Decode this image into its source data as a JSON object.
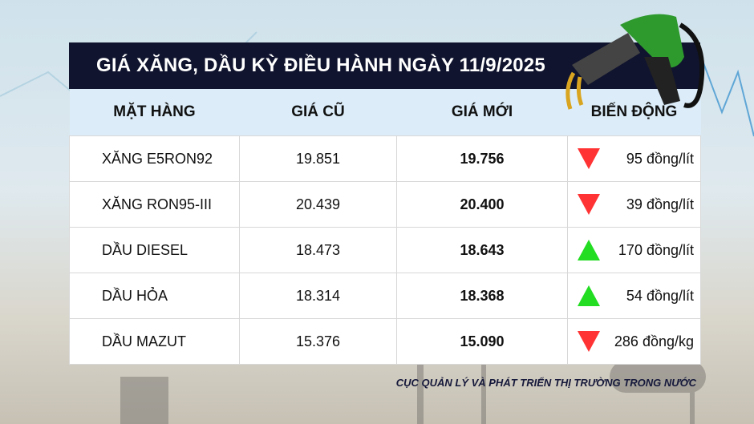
{
  "title": "GIÁ XĂNG, DẦU KỲ ĐIỀU HÀNH NGÀY 11/9/2025",
  "columns": [
    "MẶT HÀNG",
    "GIÁ CŨ",
    "GIÁ MỚI",
    "BIẾN ĐỘNG"
  ],
  "rows": [
    {
      "name": "XĂNG E5RON92",
      "old": "19.851",
      "new": "19.756",
      "change": "95 đồng/lít",
      "direction": "down"
    },
    {
      "name": "XĂNG RON95-III",
      "old": "20.439",
      "new": "20.400",
      "change": "39 đồng/lít",
      "direction": "down"
    },
    {
      "name": "DẦU DIESEL",
      "old": "18.473",
      "new": "18.643",
      "change": "170 đồng/lít",
      "direction": "up"
    },
    {
      "name": "DẦU HỎA",
      "old": "18.314",
      "new": "18.368",
      "change": "54 đồng/lít",
      "direction": "up"
    },
    {
      "name": "DẦU MAZUT",
      "old": "15.376",
      "new": "15.090",
      "change": "286 đồng/kg",
      "direction": "down"
    }
  ],
  "source": "CỤC QUẢN LÝ VÀ PHÁT TRIỂN THỊ TRƯỜNG TRONG NƯỚC",
  "colors": {
    "title_bg": "#10142e",
    "header_bg": "#dcedf9",
    "down": "#ff3333",
    "up": "#22dd22"
  }
}
